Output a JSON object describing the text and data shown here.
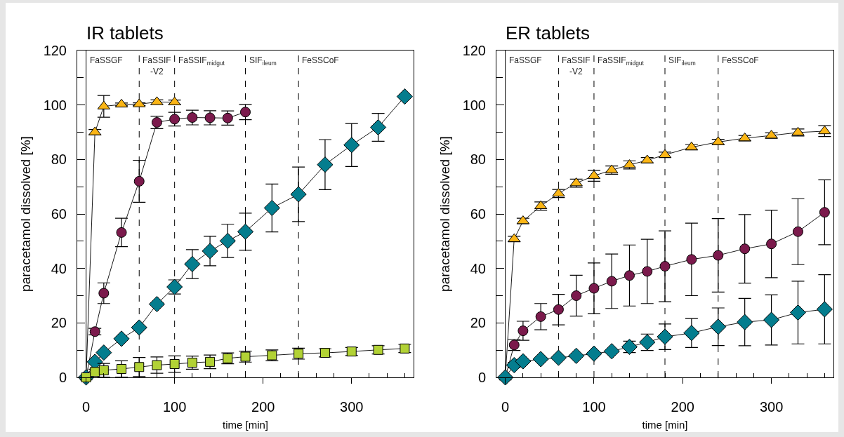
{
  "chart_data": [
    {
      "type": "line",
      "title": "IR tablets",
      "xlabel": "time [min]",
      "ylabel": "paracetamol dissolved [%]",
      "xlim": [
        -10,
        370
      ],
      "ylim": [
        0,
        120
      ],
      "xticks": [
        0,
        {
          "value": 20,
          "label": null
        },
        {
          "value": 40,
          "label": null
        },
        {
          "value": 60,
          "label": null
        },
        {
          "value": 80,
          "label": null
        },
        100,
        {
          "value": 120,
          "label": null
        },
        {
          "value": 140,
          "label": null
        },
        {
          "value": 160,
          "label": null
        },
        {
          "value": 180,
          "label": null
        },
        200,
        {
          "value": 220,
          "label": null
        },
        {
          "value": 240,
          "label": null
        },
        {
          "value": 260,
          "label": null
        },
        {
          "value": 280,
          "label": null
        },
        300,
        {
          "value": 320,
          "label": null
        },
        {
          "value": 340,
          "label": null
        },
        {
          "value": 360,
          "label": null
        }
      ],
      "yticks": [
        0,
        {
          "value": 10,
          "label": null
        },
        20,
        {
          "value": 30,
          "label": null
        },
        40,
        {
          "value": 50,
          "label": null
        },
        60,
        {
          "value": 70,
          "label": null
        },
        80,
        {
          "value": 90,
          "label": null
        },
        100,
        {
          "value": 110,
          "label": null
        },
        120
      ],
      "line_style": "solid",
      "x": [
        0,
        10,
        20,
        40,
        60,
        80,
        100,
        120,
        140,
        160,
        180,
        210,
        240,
        270,
        300,
        330,
        360
      ],
      "series": [
        {
          "color": "#fbb515",
          "marker": "triangle",
          "x": [
            0,
            10,
            20,
            40,
            60,
            80,
            100
          ],
          "values": [
            0,
            90,
            99.5,
            100.2,
            100.3,
            101.1,
            101
          ],
          "errors": [
            null,
            1,
            4,
            0.5,
            0.5,
            0.8,
            0.8
          ]
        },
        {
          "color": "#7b1a4c",
          "marker": "circle",
          "x": [
            0,
            10,
            20,
            40,
            60,
            80,
            100,
            120,
            140,
            160,
            180
          ],
          "values": [
            0,
            16.8,
            30.9,
            53.2,
            72,
            93.6,
            94.8,
            95.4,
            95.3,
            95.2,
            97.4
          ],
          "errors": [
            null,
            1.2,
            3.8,
            5.2,
            7.7,
            2.3,
            2.5,
            2.7,
            2.6,
            2.6,
            2.8
          ]
        },
        {
          "color": "#047d8e",
          "marker": "diamond",
          "values": [
            0,
            5.7,
            9.1,
            14.2,
            18.3,
            26.9,
            33.2,
            41.6,
            46.4,
            50.1,
            53.5,
            62.2,
            67.2,
            78.1,
            85.3,
            91.8,
            103.1
          ],
          "errors": [
            null,
            null,
            null,
            null,
            null,
            null,
            2.6,
            5.3,
            5.4,
            6.1,
            6.8,
            8.8,
            10,
            9.2,
            7.9,
            5.1,
            null
          ]
        },
        {
          "color": "#b2d235",
          "marker": "square",
          "values": [
            0,
            2,
            2.6,
            3.1,
            3.8,
            4.5,
            4.9,
            5.4,
            5.7,
            7,
            7.6,
            8.1,
            8.7,
            9,
            9.5,
            10.1,
            10.6
          ],
          "errors": [
            null,
            1,
            2.5,
            3,
            3.5,
            3,
            3,
            2.4,
            2.5,
            2,
            2,
            2,
            2,
            1.5,
            1.5,
            1.5,
            1.5
          ]
        }
      ],
      "ref_lines": [
        {
          "axis": "x",
          "value": 0,
          "label": "FaSSGF",
          "line_style": "solid"
        },
        {
          "axis": "x",
          "value": 60,
          "label": "FaSSIF\n-V2",
          "line_style": "dashed"
        },
        {
          "axis": "x",
          "value": 100,
          "label": "FaSSIF$_{midgut}$",
          "line_style": "dashed"
        },
        {
          "axis": "x",
          "value": 180,
          "label": "SIF$_{ileum}$",
          "line_style": "dashed"
        },
        {
          "axis": "x",
          "value": 240,
          "label": "FeSSCoF",
          "line_style": "dashed"
        }
      ]
    },
    {
      "type": "line",
      "title": "ER tablets",
      "xlabel": "time [min]",
      "ylabel": "paracetamol dissolved [%]",
      "xlim": [
        -10,
        370
      ],
      "ylim": [
        0,
        120
      ],
      "xticks": [
        0,
        {
          "value": 20,
          "label": null
        },
        {
          "value": 40,
          "label": null
        },
        {
          "value": 60,
          "label": null
        },
        {
          "value": 80,
          "label": null
        },
        100,
        {
          "value": 120,
          "label": null
        },
        {
          "value": 140,
          "label": null
        },
        {
          "value": 160,
          "label": null
        },
        {
          "value": 180,
          "label": null
        },
        200,
        {
          "value": 220,
          "label": null
        },
        {
          "value": 240,
          "label": null
        },
        {
          "value": 260,
          "label": null
        },
        {
          "value": 280,
          "label": null
        },
        300,
        {
          "value": 320,
          "label": null
        },
        {
          "value": 340,
          "label": null
        },
        {
          "value": 360,
          "label": null
        }
      ],
      "yticks": [
        0,
        {
          "value": 10,
          "label": null
        },
        20,
        {
          "value": 30,
          "label": null
        },
        40,
        {
          "value": 50,
          "label": null
        },
        60,
        {
          "value": 70,
          "label": null
        },
        80,
        {
          "value": 90,
          "label": null
        },
        100,
        {
          "value": 110,
          "label": null
        },
        120
      ],
      "line_style": "solid",
      "x": [
        0,
        10,
        20,
        40,
        60,
        80,
        100,
        120,
        140,
        160,
        180,
        210,
        240,
        270,
        300,
        330,
        360
      ],
      "series": [
        {
          "color": "#fbb515",
          "marker": "triangle",
          "values": [
            0,
            50.8,
            57.4,
            62.9,
            67.5,
            71.3,
            74,
            76.1,
            78,
            79.7,
            81.7,
            84.5,
            86.4,
            87.8,
            88.8,
            89.9,
            90.4
          ],
          "errors": [
            null,
            1,
            1,
            1.5,
            1.5,
            1.5,
            2,
            1.5,
            1.5,
            1,
            1,
            1,
            1,
            1,
            1,
            1.3,
            2
          ]
        },
        {
          "color": "#7b1a4c",
          "marker": "circle",
          "values": [
            0,
            11.9,
            17.1,
            22.3,
            24.9,
            30,
            32.7,
            35.3,
            37.4,
            38.9,
            40.8,
            43.3,
            44.8,
            47.2,
            49,
            53.5,
            60.6
          ],
          "errors": [
            null,
            2,
            3.5,
            4.8,
            5.6,
            7.5,
            9.3,
            10,
            11.2,
            11.8,
            13,
            13.3,
            13.5,
            12.6,
            12.4,
            12.1,
            11.9
          ]
        },
        {
          "color": "#047d8e",
          "marker": "diamond",
          "values": [
            0,
            4.5,
            5.9,
            6.7,
            7.2,
            7.9,
            8.7,
            9.6,
            11.2,
            12.9,
            14.9,
            16.3,
            18.6,
            20.3,
            21.1,
            23.8,
            25
          ],
          "errors": [
            null,
            1,
            null,
            null,
            null,
            null,
            null,
            null,
            2.1,
            3,
            4.7,
            5.3,
            6.9,
            8.7,
            9.2,
            11.5,
            12.7
          ]
        }
      ],
      "ref_lines": [
        {
          "axis": "x",
          "value": 0,
          "label": "FaSSGF",
          "line_style": "solid"
        },
        {
          "axis": "x",
          "value": 60,
          "label": "FaSSIF\n-V2",
          "line_style": "dashed"
        },
        {
          "axis": "x",
          "value": 100,
          "label": "FaSSIF$_{midgut}$",
          "line_style": "dashed"
        },
        {
          "axis": "x",
          "value": 180,
          "label": "SIF$_{ileum}$",
          "line_style": "dashed"
        },
        {
          "axis": "x",
          "value": 240,
          "label": "FeSSCoF",
          "line_style": "dashed"
        }
      ]
    }
  ]
}
